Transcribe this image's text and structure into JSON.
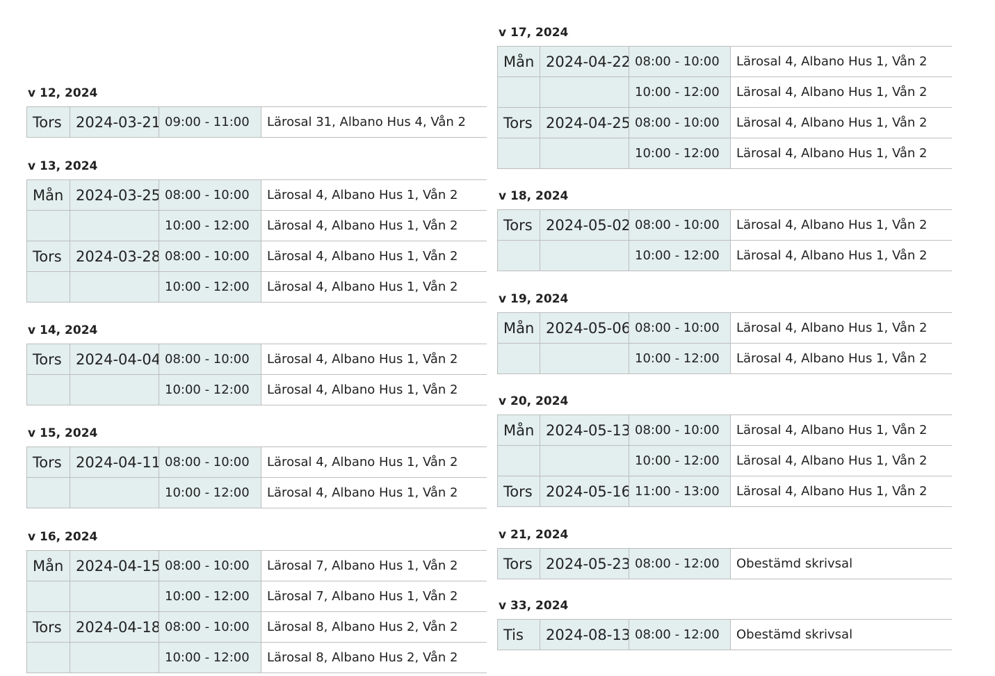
{
  "left_weeks": [
    {
      "title": "v 12, 2024",
      "rows": [
        {
          "day": "Tors",
          "date": "2024-03-21",
          "time": "09:00 - 11:00",
          "room": "Lärosal 31, Albano Hus 4, Vån 2"
        }
      ]
    },
    {
      "title": "v 13, 2024",
      "rows": [
        {
          "day": "Mån",
          "date": "2024-03-25",
          "time": "08:00 - 10:00",
          "room": "Lärosal 4, Albano Hus 1, Vån 2"
        },
        {
          "day": "",
          "date": "",
          "time": "10:00 - 12:00",
          "room": "Lärosal 4, Albano Hus 1, Vån 2"
        },
        {
          "day": "Tors",
          "date": "2024-03-28",
          "time": "08:00 - 10:00",
          "room": "Lärosal 4, Albano Hus 1, Vån 2"
        },
        {
          "day": "",
          "date": "",
          "time": "10:00 - 12:00",
          "room": "Lärosal 4, Albano Hus 1, Vån 2"
        }
      ]
    },
    {
      "title": "v 14, 2024",
      "rows": [
        {
          "day": "Tors",
          "date": "2024-04-04",
          "time": "08:00 - 10:00",
          "room": "Lärosal 4, Albano Hus 1, Vån 2"
        },
        {
          "day": "",
          "date": "",
          "time": "10:00 - 12:00",
          "room": "Lärosal 4, Albano Hus 1, Vån 2"
        }
      ]
    },
    {
      "title": "v 15, 2024",
      "rows": [
        {
          "day": "Tors",
          "date": "2024-04-11",
          "time": "08:00 - 10:00",
          "room": "Lärosal 4, Albano Hus 1, Vån 2"
        },
        {
          "day": "",
          "date": "",
          "time": "10:00 - 12:00",
          "room": "Lärosal 4, Albano Hus 1, Vån 2"
        }
      ]
    },
    {
      "title": "v 16, 2024",
      "rows": [
        {
          "day": "Mån",
          "date": "2024-04-15",
          "time": "08:00 - 10:00",
          "room": "Lärosal 7, Albano Hus 1, Vån 2"
        },
        {
          "day": "",
          "date": "",
          "time": "10:00 - 12:00",
          "room": "Lärosal 7, Albano Hus 1, Vån 2"
        },
        {
          "day": "Tors",
          "date": "2024-04-18",
          "time": "08:00 - 10:00",
          "room": "Lärosal 8, Albano Hus 2, Vån 2"
        },
        {
          "day": "",
          "date": "",
          "time": "10:00 - 12:00",
          "room": "Lärosal 8, Albano Hus 2, Vån 2"
        }
      ]
    }
  ],
  "right_weeks": [
    {
      "title": "v 17, 2024",
      "rows": [
        {
          "day": "Mån",
          "date": "2024-04-22",
          "time": "08:00 - 10:00",
          "room": "Lärosal 4, Albano Hus 1, Vån 2"
        },
        {
          "day": "",
          "date": "",
          "time": "10:00 - 12:00",
          "room": "Lärosal 4, Albano Hus 1, Vån 2"
        },
        {
          "day": "Tors",
          "date": "2024-04-25",
          "time": "08:00 - 10:00",
          "room": "Lärosal 4, Albano Hus 1, Vån 2"
        },
        {
          "day": "",
          "date": "",
          "time": "10:00 - 12:00",
          "room": "Lärosal 4, Albano Hus 1, Vån 2"
        }
      ]
    },
    {
      "title": "v 18, 2024",
      "rows": [
        {
          "day": "Tors",
          "date": "2024-05-02",
          "time": "08:00 - 10:00",
          "room": "Lärosal 4, Albano Hus 1, Vån 2"
        },
        {
          "day": "",
          "date": "",
          "time": "10:00 - 12:00",
          "room": "Lärosal 4, Albano Hus 1, Vån 2"
        }
      ]
    },
    {
      "title": "v 19, 2024",
      "rows": [
        {
          "day": "Mån",
          "date": "2024-05-06",
          "time": "08:00 - 10:00",
          "room": "Lärosal 4, Albano Hus 1, Vån 2"
        },
        {
          "day": "",
          "date": "",
          "time": "10:00 - 12:00",
          "room": "Lärosal 4, Albano Hus 1, Vån 2"
        }
      ]
    },
    {
      "title": "v 20, 2024",
      "rows": [
        {
          "day": "Mån",
          "date": "2024-05-13",
          "time": "08:00 - 10:00",
          "room": "Lärosal 4, Albano Hus 1, Vån 2"
        },
        {
          "day": "",
          "date": "",
          "time": "10:00 - 12:00",
          "room": "Lärosal 4, Albano Hus 1, Vån 2"
        },
        {
          "day": "Tors",
          "date": "2024-05-16",
          "time": "11:00 - 13:00",
          "room": "Lärosal 4, Albano Hus 1, Vån 2"
        }
      ]
    },
    {
      "title": "v 21, 2024",
      "rows": [
        {
          "day": "Tors",
          "date": "2024-05-23",
          "time": "08:00 - 12:00",
          "room": "Obestämd skrivsal"
        }
      ]
    },
    {
      "title": "v 33, 2024",
      "rows": [
        {
          "day": "Tis",
          "date": "2024-08-13",
          "time": "08:00 - 12:00",
          "room": "Obestämd skrivsal"
        }
      ]
    }
  ]
}
